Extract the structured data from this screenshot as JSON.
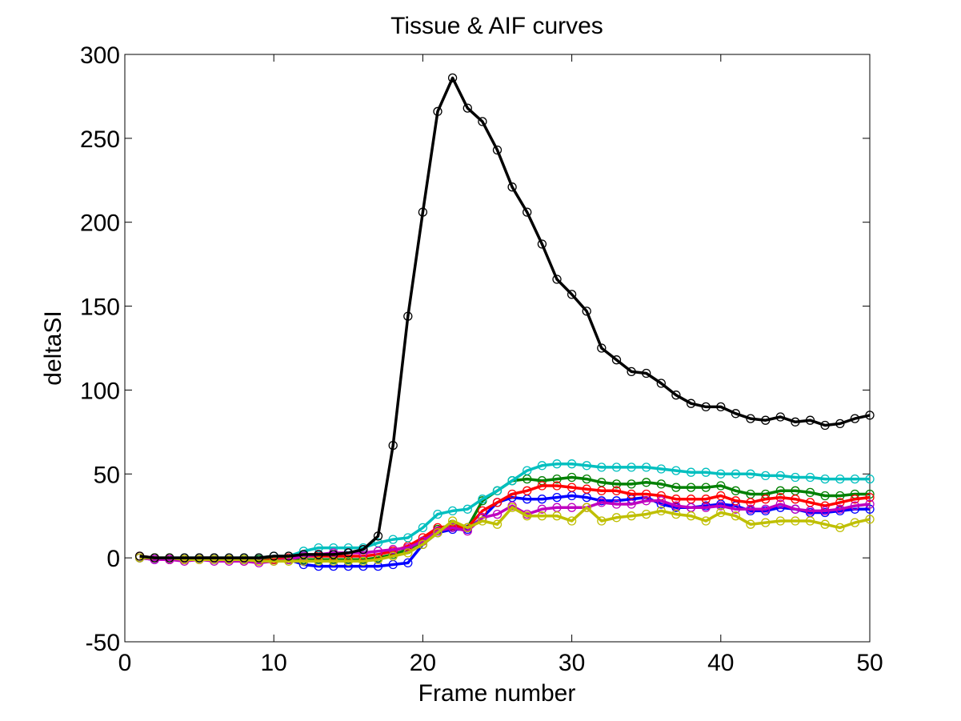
{
  "chart_data": {
    "type": "line",
    "title": "Tissue & AIF curves",
    "xlabel": "Frame number",
    "ylabel": "deltaSI",
    "xlim": [
      0,
      50
    ],
    "ylim": [
      -50,
      300
    ],
    "xticks": [
      0,
      10,
      20,
      30,
      40,
      50
    ],
    "yticks": [
      -50,
      0,
      50,
      100,
      150,
      200,
      250,
      300
    ],
    "grid": false,
    "legend": "none",
    "x": [
      1,
      2,
      3,
      4,
      5,
      6,
      7,
      8,
      9,
      10,
      11,
      12,
      13,
      14,
      15,
      16,
      17,
      18,
      19,
      20,
      21,
      22,
      23,
      24,
      25,
      26,
      27,
      28,
      29,
      30,
      31,
      32,
      33,
      34,
      35,
      36,
      37,
      38,
      39,
      40,
      41,
      42,
      43,
      44,
      45,
      46,
      47,
      48,
      49,
      50
    ],
    "series": [
      {
        "color": "#0000ff",
        "marker": "circle",
        "values": [
          0,
          -1,
          -1,
          -1,
          0,
          -1,
          -1,
          -1,
          -1,
          -1,
          -1,
          -4,
          -5,
          -5,
          -5,
          -5,
          -5,
          -4,
          -3,
          8,
          15,
          17,
          17,
          24,
          33,
          36,
          35,
          35,
          36,
          37,
          36,
          34,
          34,
          35,
          36,
          32,
          30,
          30,
          31,
          32,
          31,
          28,
          28,
          30,
          29,
          27,
          27,
          28,
          29,
          29
        ]
      },
      {
        "color": "#008000",
        "marker": "circle",
        "values": [
          0,
          0,
          -1,
          -1,
          0,
          0,
          -1,
          -1,
          -1,
          -1,
          -1,
          -1,
          -1,
          -1,
          -1,
          -1,
          0,
          2,
          5,
          10,
          17,
          20,
          18,
          34,
          40,
          46,
          47,
          46,
          47,
          48,
          47,
          45,
          44,
          44,
          45,
          44,
          42,
          42,
          42,
          43,
          40,
          38,
          38,
          40,
          40,
          39,
          37,
          37,
          38,
          38
        ]
      },
      {
        "color": "#ff0000",
        "marker": "circle",
        "values": [
          1,
          0,
          -1,
          -1,
          0,
          0,
          -1,
          -2,
          -2,
          -1,
          0,
          1,
          1,
          1,
          1,
          1,
          2,
          4,
          7,
          12,
          18,
          19,
          18,
          28,
          33,
          38,
          40,
          43,
          43,
          42,
          41,
          40,
          40,
          38,
          38,
          37,
          35,
          35,
          35,
          37,
          34,
          33,
          35,
          36,
          35,
          33,
          31,
          33,
          35,
          36
        ]
      },
      {
        "color": "#00bfbf",
        "marker": "circle",
        "values": [
          0,
          0,
          0,
          0,
          0,
          0,
          0,
          0,
          0,
          1,
          1,
          4,
          6,
          6,
          6,
          6,
          9,
          11,
          12,
          18,
          26,
          28,
          29,
          35,
          40,
          46,
          52,
          55,
          56,
          56,
          55,
          54,
          54,
          54,
          54,
          53,
          52,
          51,
          51,
          50,
          50,
          50,
          49,
          49,
          48,
          48,
          47,
          47,
          47,
          47
        ]
      },
      {
        "color": "#bf00bf",
        "marker": "circle",
        "values": [
          0,
          -1,
          -1,
          -2,
          -1,
          -2,
          -2,
          -2,
          -3,
          -2,
          -1,
          1,
          2,
          3,
          3,
          3,
          4,
          5,
          6,
          10,
          16,
          18,
          16,
          24,
          26,
          31,
          26,
          29,
          30,
          30,
          30,
          33,
          32,
          32,
          34,
          34,
          31,
          30,
          30,
          31,
          29,
          29,
          29,
          32,
          29,
          28,
          28,
          29,
          31,
          32
        ]
      },
      {
        "color": "#bfbf00",
        "marker": "circle",
        "values": [
          0,
          0,
          0,
          -1,
          -1,
          -1,
          -1,
          -1,
          -2,
          -2,
          -2,
          -2,
          -2,
          -2,
          -2,
          -2,
          -1,
          1,
          3,
          8,
          15,
          22,
          18,
          22,
          20,
          30,
          25,
          25,
          25,
          22,
          30,
          22,
          24,
          25,
          26,
          28,
          26,
          25,
          22,
          27,
          25,
          20,
          21,
          22,
          22,
          22,
          20,
          18,
          21,
          23
        ]
      },
      {
        "color": "#000000",
        "marker": "circle",
        "values": [
          1,
          0,
          0,
          0,
          0,
          0,
          0,
          0,
          0,
          1,
          1,
          2,
          2,
          2,
          3,
          5,
          13,
          67,
          144,
          206,
          266,
          286,
          268,
          260,
          243,
          221,
          206,
          187,
          166,
          157,
          147,
          125,
          118,
          111,
          110,
          104,
          97,
          92,
          90,
          90,
          86,
          83,
          82,
          84,
          81,
          82,
          79,
          80,
          83,
          85
        ]
      }
    ]
  }
}
